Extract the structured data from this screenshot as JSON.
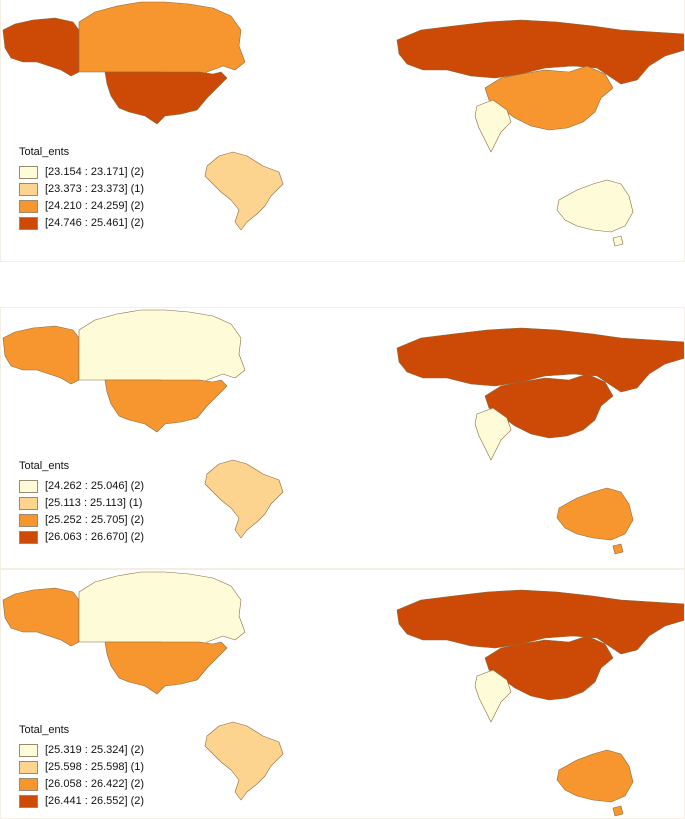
{
  "palette": [
    "#fefbd8",
    "#fcd48f",
    "#f7962f",
    "#cc4a05"
  ],
  "maps": [
    {
      "legend_title": "Total_ents",
      "classes": [
        {
          "label": "[23.154 : 23.171] (2)",
          "color": "#fefbd8"
        },
        {
          "label": "[23.373 : 23.373] (1)",
          "color": "#fcd48f"
        },
        {
          "label": "[24.210 : 24.259] (2)",
          "color": "#f7962f"
        },
        {
          "label": "[24.746 : 25.461] (2)",
          "color": "#cc4a05"
        }
      ],
      "countries": {
        "Canada": "#f7962f",
        "USA": "#cc4a05",
        "Brazil": "#fcd48f",
        "Russia": "#cc4a05",
        "China": "#f7962f",
        "India": "#fefbd8",
        "Australia": "#fefbd8"
      }
    },
    {
      "legend_title": "Total_ents",
      "classes": [
        {
          "label": "[24.262 : 25.046] (2)",
          "color": "#fefbd8"
        },
        {
          "label": "[25.113 : 25.113] (1)",
          "color": "#fcd48f"
        },
        {
          "label": "[25.252 : 25.705] (2)",
          "color": "#f7962f"
        },
        {
          "label": "[26.063 : 26.670] (2)",
          "color": "#cc4a05"
        }
      ],
      "countries": {
        "Canada": "#fefbd8",
        "USA": "#f7962f",
        "Brazil": "#fcd48f",
        "Russia": "#cc4a05",
        "China": "#cc4a05",
        "India": "#fefbd8",
        "Australia": "#f7962f"
      }
    },
    {
      "legend_title": "Total_ents",
      "classes": [
        {
          "label": "[25.319 : 25.324] (2)",
          "color": "#fefbd8"
        },
        {
          "label": "[25.598 : 25.598] (1)",
          "color": "#fcd48f"
        },
        {
          "label": "[26.058 : 26.422] (2)",
          "color": "#f7962f"
        },
        {
          "label": "[26.441 : 26.552] (2)",
          "color": "#cc4a05"
        }
      ],
      "countries": {
        "Canada": "#fefbd8",
        "USA": "#f7962f",
        "Brazil": "#fcd48f",
        "Russia": "#cc4a05",
        "China": "#cc4a05",
        "India": "#fefbd8",
        "Australia": "#f7962f"
      }
    }
  ]
}
